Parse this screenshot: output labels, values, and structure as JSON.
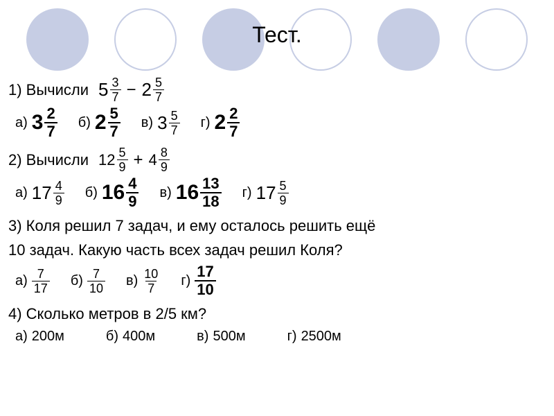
{
  "title": "Тест.",
  "circle_colors": [
    "#c6cde4",
    "#ffffff",
    "#c6cde4",
    "#ffffff",
    "#c6cde4",
    "#ffffff"
  ],
  "circle_border": "#c6cde4",
  "q1": {
    "prompt": "1) Вычисли",
    "expr": {
      "a_whole": "5",
      "a_num": "3",
      "a_den": "7",
      "op": "−",
      "b_whole": "2",
      "b_num": "5",
      "b_den": "7"
    },
    "answers": [
      {
        "label": "а)",
        "bold": true,
        "whole": "3",
        "num": "2",
        "den": "7"
      },
      {
        "label": "б)",
        "bold": true,
        "whole": "2",
        "num": "5",
        "den": "7"
      },
      {
        "label": "в)",
        "bold": false,
        "whole": "3",
        "num": "5",
        "den": "7"
      },
      {
        "label": "г)",
        "bold": true,
        "whole": "2",
        "num": "2",
        "den": "7"
      }
    ]
  },
  "q2": {
    "prompt": "2) Вычисли",
    "expr": {
      "a_whole": "12",
      "a_num": "5",
      "a_den": "9",
      "op": "+",
      "b_whole": "4",
      "b_num": "8",
      "b_den": "9"
    },
    "answers": [
      {
        "label": "а)",
        "bold": false,
        "whole": "17",
        "num": "4",
        "den": "9"
      },
      {
        "label": "б)",
        "bold": true,
        "whole": "16",
        "num": "4",
        "den": "9"
      },
      {
        "label": "в)",
        "bold": true,
        "whole": "16",
        "num": "13",
        "den": "18"
      },
      {
        "label": "г)",
        "bold": false,
        "whole": "17",
        "num": "5",
        "den": "9"
      }
    ]
  },
  "q3": {
    "line1": "3) Коля решил 7 задач, и ему осталось решить ещё",
    "line2": "10 задач. Какую часть всех задач решил Коля?",
    "answers": [
      {
        "label": "а)",
        "bold": false,
        "num": "7",
        "den": "17"
      },
      {
        "label": "б)",
        "bold": false,
        "num": "7",
        "den": "10"
      },
      {
        "label": "в)",
        "bold": false,
        "num": "10",
        "den": "7"
      },
      {
        "label": "г)",
        "bold": true,
        "num": "17",
        "den": "10"
      }
    ]
  },
  "q4": {
    "prompt": "4) Сколько метров в 2/5 км?",
    "answers": [
      {
        "label": "а)",
        "text": "200м"
      },
      {
        "label": "б)",
        "text": "400м"
      },
      {
        "label": "в)",
        "text": "500м"
      },
      {
        "label": "г)",
        "text": "2500м"
      }
    ]
  }
}
